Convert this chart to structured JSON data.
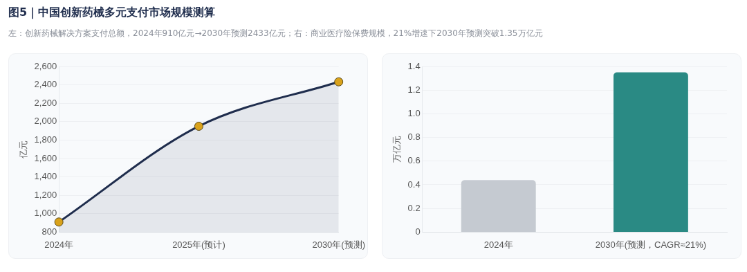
{
  "chart_data": [
    {
      "type": "area",
      "title": "图5｜中国创新药械多元支付市场规模测算",
      "subtitle": "左：创新药械解决方案支付总额，2024年910亿元→2030年预测2433亿元；右：商业医疗险保费规模，21%增速下2030年预测突破1.35万亿元",
      "ylabel": "亿元",
      "categories": [
        "2024年",
        "2025年(预计)",
        "2030年(预测)"
      ],
      "series": [
        {
          "color": "#1f2d4d",
          "values": [
            910,
            1950,
            2433
          ]
        }
      ],
      "ylim": [
        800,
        2600
      ],
      "yticks": [
        {
          "value": 800,
          "label": "800"
        },
        {
          "value": 1000,
          "label": "1,000"
        },
        {
          "value": 1200,
          "label": "1,200"
        },
        {
          "value": 1400,
          "label": "1,400"
        },
        {
          "value": 1600,
          "label": "1,600"
        },
        {
          "value": 1800,
          "label": "1,800"
        },
        {
          "value": 2000,
          "label": "2,000"
        },
        {
          "value": 2200,
          "label": "2,200"
        },
        {
          "value": 2400,
          "label": "2,400"
        },
        {
          "value": 2600,
          "label": "2,600"
        }
      ],
      "grid": "y",
      "marker": "circle"
    },
    {
      "type": "bar",
      "ylabel": "万亿元",
      "categories": [
        "2024年",
        "2030年(预测，CAGR≈21%)"
      ],
      "values": [
        0.44,
        1.35
      ],
      "colors": [
        "#c5cad1",
        "#2a8a84"
      ],
      "ylim": [
        0,
        1.4
      ],
      "yticks": [
        0,
        {
          "value": 0.2,
          "label": "0.2"
        },
        {
          "value": 0.4,
          "label": "0.4"
        },
        {
          "value": 0.6,
          "label": "0.6"
        },
        {
          "value": 0.8,
          "label": "0.8"
        },
        {
          "value": 1.0,
          "label": "1.0"
        },
        {
          "value": 1.2,
          "label": "1.2"
        },
        {
          "value": 1.4,
          "label": "1.4"
        }
      ],
      "grid": "y"
    }
  ]
}
